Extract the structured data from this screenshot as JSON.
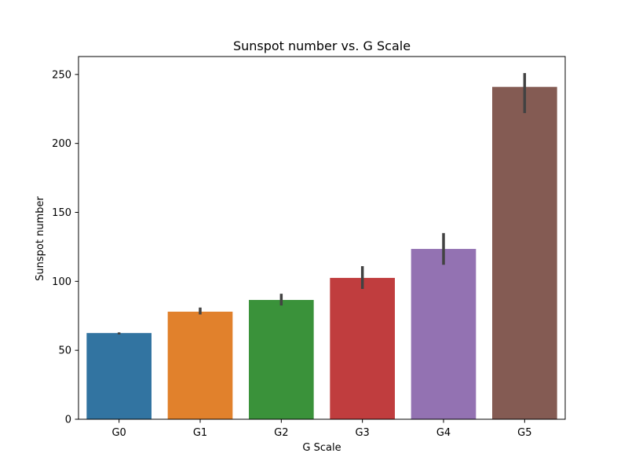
{
  "chart_data": {
    "type": "bar",
    "title": "Sunspot number vs. G Scale",
    "xlabel": "G Scale",
    "ylabel": "Sunspot number",
    "categories": [
      "G0",
      "G1",
      "G2",
      "G3",
      "G4",
      "G5"
    ],
    "values": [
      62.5,
      78,
      86.5,
      102.5,
      123.5,
      241
    ],
    "error_low": [
      61.5,
      76,
      82.5,
      94.5,
      112,
      222
    ],
    "error_high": [
      63,
      81,
      91,
      111,
      135,
      251
    ],
    "colors": [
      "#3274a1",
      "#e1812c",
      "#3a923a",
      "#c03d3e",
      "#9372b2",
      "#845b53"
    ],
    "error_color": "#424242",
    "ylim": [
      0,
      263
    ],
    "yticks": [
      0,
      50,
      100,
      150,
      200,
      250
    ],
    "grid": false
  }
}
